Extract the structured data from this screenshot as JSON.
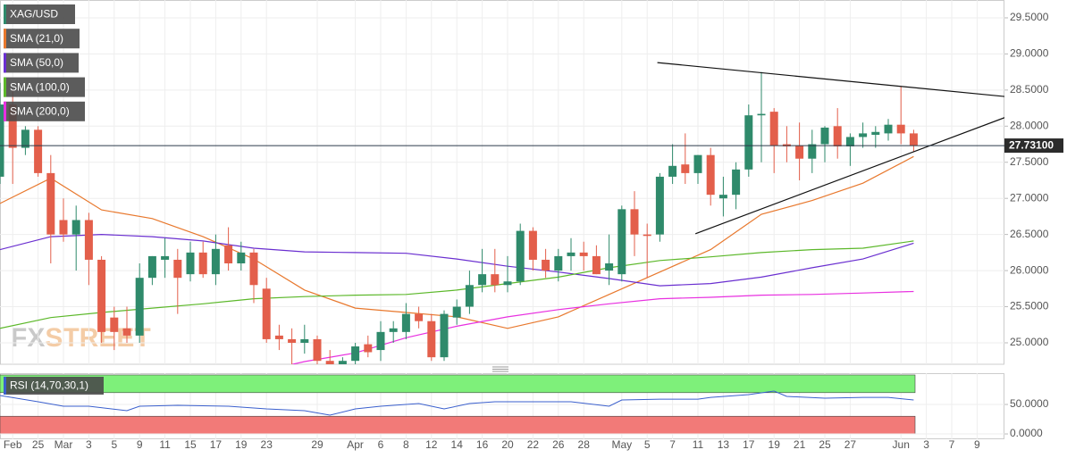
{
  "chart_data": [
    {
      "type": "candlestick",
      "categories": [
        null,
        "Feb",
        null,
        "25",
        null,
        "Mar",
        null,
        "3",
        null,
        "5",
        null,
        "9",
        null,
        "11",
        null,
        "15",
        null,
        "17",
        null,
        "19",
        null,
        "23",
        null,
        null,
        null,
        "29",
        null,
        null,
        "Apr",
        null,
        "6",
        null,
        "8",
        null,
        "12",
        null,
        "14",
        null,
        "16",
        null,
        "20",
        null,
        "22",
        null,
        "26",
        null,
        "28",
        null,
        null,
        "May",
        null,
        "5",
        null,
        "7",
        null,
        "11",
        null,
        "13",
        null,
        "17",
        null,
        "19",
        null,
        "21",
        null,
        "25",
        null,
        "27",
        null,
        null,
        null,
        "Jun",
        null,
        "3",
        null,
        "7",
        null,
        "9",
        null,
        null
      ],
      "series": [
        {
          "name": "XAG/USD",
          "up_color": "#2f8a6b",
          "down_color": "#e35f4b",
          "open": [
            27.3,
            28.3,
            27.7,
            27.95,
            27.35,
            26.7,
            26.5,
            26.7,
            26.15,
            25.35,
            25.2,
            25.1,
            25.9,
            26.15,
            26.15,
            25.95,
            26.25,
            25.95,
            26.35,
            26.1,
            26.25,
            25.75,
            25.1,
            25.05,
            25.0,
            25.05,
            24.75,
            24.7,
            24.75,
            24.98,
            24.9,
            25.15,
            25.15,
            25.4,
            25.3,
            24.8,
            25.35,
            25.5,
            25.8,
            25.95,
            25.8,
            25.85,
            26.55,
            26.15,
            26.0,
            26.2,
            26.25,
            26.2,
            26.0,
            25.95,
            26.85,
            26.5,
            26.5,
            27.3,
            27.47,
            27.35,
            27.6,
            27.0,
            27.05,
            27.4,
            28.15,
            28.2,
            27.75,
            27.73,
            27.55,
            27.75,
            28.0,
            27.72,
            27.85,
            27.88,
            27.9,
            28.02,
            27.9,
            null,
            null,
            null,
            null,
            null,
            null,
            null
          ],
          "high": [
            28.6,
            28.5,
            28.0,
            28.0,
            27.6,
            27.0,
            26.9,
            26.8,
            26.2,
            25.5,
            25.5,
            26.1,
            26.2,
            26.45,
            26.3,
            26.4,
            26.4,
            26.5,
            26.6,
            26.4,
            26.3,
            25.9,
            25.25,
            25.2,
            25.25,
            25.1,
            24.9,
            24.8,
            25.0,
            25.1,
            25.3,
            25.3,
            25.55,
            25.5,
            25.4,
            25.45,
            25.6,
            26.0,
            26.3,
            26.3,
            26.2,
            26.65,
            26.6,
            26.3,
            26.3,
            26.45,
            26.4,
            26.35,
            26.5,
            26.9,
            27.1,
            26.65,
            27.35,
            27.75,
            27.9,
            27.6,
            27.7,
            27.3,
            27.5,
            28.3,
            28.75,
            28.25,
            28.0,
            28.05,
            27.95,
            28.0,
            28.25,
            27.9,
            28.05,
            28.0,
            28.1,
            28.55,
            27.95,
            null,
            null,
            null,
            null,
            null,
            null,
            null
          ],
          "low": [
            27.2,
            27.2,
            27.6,
            27.3,
            26.1,
            26.4,
            26.0,
            25.8,
            25.0,
            24.9,
            25.0,
            25.0,
            25.8,
            25.9,
            25.4,
            25.85,
            25.9,
            25.8,
            26.0,
            26.0,
            25.55,
            25.0,
            24.9,
            24.7,
            24.85,
            24.7,
            24.6,
            24.5,
            24.7,
            24.8,
            24.75,
            25.0,
            25.05,
            25.2,
            24.75,
            24.75,
            25.25,
            25.4,
            25.7,
            25.7,
            25.7,
            25.8,
            26.0,
            25.9,
            25.85,
            26.0,
            26.0,
            25.95,
            25.8,
            25.85,
            26.2,
            25.9,
            26.4,
            27.2,
            27.2,
            27.2,
            26.9,
            26.75,
            26.85,
            27.3,
            27.5,
            27.35,
            27.5,
            27.25,
            27.35,
            27.5,
            27.55,
            27.45,
            27.7,
            27.7,
            27.8,
            27.75,
            27.65,
            null,
            null,
            null,
            null,
            null,
            null,
            null
          ],
          "close": [
            28.3,
            27.7,
            27.95,
            27.35,
            26.5,
            26.5,
            26.7,
            26.15,
            25.15,
            25.15,
            25.1,
            25.9,
            26.2,
            26.2,
            25.9,
            26.25,
            25.95,
            26.3,
            26.1,
            26.25,
            25.8,
            25.05,
            25.05,
            25.0,
            25.05,
            24.75,
            24.7,
            24.75,
            24.95,
            24.87,
            25.15,
            25.2,
            25.4,
            25.3,
            24.8,
            25.4,
            25.5,
            25.8,
            25.95,
            25.8,
            25.85,
            26.55,
            26.15,
            26.0,
            26.2,
            26.25,
            26.2,
            25.95,
            26.1,
            26.85,
            26.5,
            26.48,
            27.3,
            27.45,
            27.35,
            27.6,
            27.05,
            27.05,
            27.4,
            28.15,
            28.17,
            27.73,
            27.72,
            27.55,
            27.75,
            27.98,
            27.72,
            27.85,
            27.9,
            27.92,
            28.02,
            27.9,
            27.731,
            null,
            null,
            null,
            null,
            null,
            null,
            null
          ]
        }
      ],
      "indicators": [
        {
          "name": "SMA (21,0)",
          "color": "#e8782d",
          "x": [
            0,
            4,
            8,
            12,
            16,
            20,
            24,
            28,
            32,
            36,
            40,
            44,
            48,
            52,
            56,
            60,
            64,
            68,
            72
          ],
          "values": [
            26.93,
            27.28,
            26.84,
            26.72,
            26.47,
            26.16,
            25.73,
            25.48,
            25.42,
            25.36,
            25.2,
            25.36,
            25.67,
            25.98,
            26.29,
            26.78,
            26.97,
            27.21,
            27.58
          ]
        },
        {
          "name": "SMA (50,0)",
          "color": "#6a2fd0",
          "x": [
            0,
            4,
            8,
            12,
            16,
            20,
            24,
            28,
            32,
            36,
            40,
            44,
            48,
            52,
            56,
            60,
            64,
            68,
            72
          ],
          "values": [
            26.29,
            26.47,
            26.5,
            26.47,
            26.41,
            26.31,
            26.26,
            26.25,
            26.24,
            26.16,
            26.06,
            25.98,
            25.89,
            25.79,
            25.82,
            25.91,
            26.04,
            26.16,
            26.38
          ]
        },
        {
          "name": "SMA (100,0)",
          "color": "#5cb82a",
          "x": [
            0,
            4,
            8,
            12,
            16,
            20,
            24,
            28,
            32,
            36,
            40,
            44,
            48,
            52,
            56,
            60,
            64,
            68,
            72
          ],
          "values": [
            25.2,
            25.35,
            25.42,
            25.48,
            25.54,
            25.61,
            25.64,
            25.66,
            25.67,
            25.73,
            25.82,
            25.91,
            26.04,
            26.14,
            26.19,
            26.25,
            26.29,
            26.31,
            26.41
          ]
        },
        {
          "name": "SMA (200,0)",
          "color": "#e830e0",
          "x": [
            23,
            24,
            28,
            32,
            36,
            40,
            44,
            48,
            52,
            56,
            60,
            64,
            68,
            72
          ],
          "values": [
            24.7,
            24.74,
            24.86,
            25.07,
            25.23,
            25.36,
            25.46,
            25.54,
            25.61,
            25.63,
            25.66,
            25.67,
            25.69,
            25.71
          ]
        }
      ],
      "trendlines": [
        {
          "color": "#111111",
          "x": [
            51.8,
            79.2
          ],
          "values": [
            28.88,
            28.41
          ]
        },
        {
          "color": "#111111",
          "x": [
            54.8,
            79.2
          ],
          "values": [
            26.51,
            28.12
          ]
        }
      ],
      "last_price": {
        "value": 27.731,
        "label": "27.73100"
      },
      "ylim": [
        24.703,
        29.747
      ],
      "yticks": [
        {
          "value": 29.5,
          "label": "29.5000"
        },
        {
          "value": 29.0,
          "label": "29.0000"
        },
        {
          "value": 28.5,
          "label": "28.5000"
        },
        {
          "value": 28.0,
          "label": "28.0000"
        },
        {
          "value": 27.5,
          "label": "27.5000"
        },
        {
          "value": 27.0,
          "label": "27.0000"
        },
        {
          "value": 26.5,
          "label": "26.5000"
        },
        {
          "value": 26.0,
          "label": "26.0000"
        },
        {
          "value": 25.5,
          "label": "25.5000"
        },
        {
          "value": 25.0,
          "label": "25.0000"
        }
      ],
      "grid": true,
      "watermark": {
        "left": "FX",
        "right": "STREET"
      }
    },
    {
      "type": "line",
      "series": [
        {
          "name": "RSI (14,70,30,1)",
          "color": "#3a5fcd",
          "x": [
            0,
            3,
            5,
            7,
            10,
            11,
            14,
            18,
            21,
            24,
            26,
            28,
            30,
            33,
            35,
            37,
            39,
            42,
            45,
            48,
            49,
            52,
            55,
            56,
            59,
            61,
            62,
            65,
            68,
            70,
            72
          ],
          "values": [
            65.2,
            54.5,
            47,
            47,
            39.4,
            47,
            48.5,
            47,
            42.4,
            39.4,
            31.8,
            42.4,
            47,
            51.5,
            42.4,
            51.5,
            54.5,
            54.5,
            54.5,
            47,
            57.6,
            59,
            59,
            62,
            66.7,
            72.7,
            63.6,
            60.6,
            62,
            62,
            57.6
          ]
        }
      ],
      "bands": [
        {
          "from": 70,
          "to": 100,
          "color": "#7ef07a"
        },
        {
          "from": 0,
          "to": 30,
          "color": "#f27a78"
        }
      ],
      "ylim": [
        -9,
        103
      ],
      "yticks": [
        {
          "value": 50,
          "label": "50.0000"
        },
        {
          "value": 0,
          "label": "0.0000"
        }
      ]
    }
  ]
}
